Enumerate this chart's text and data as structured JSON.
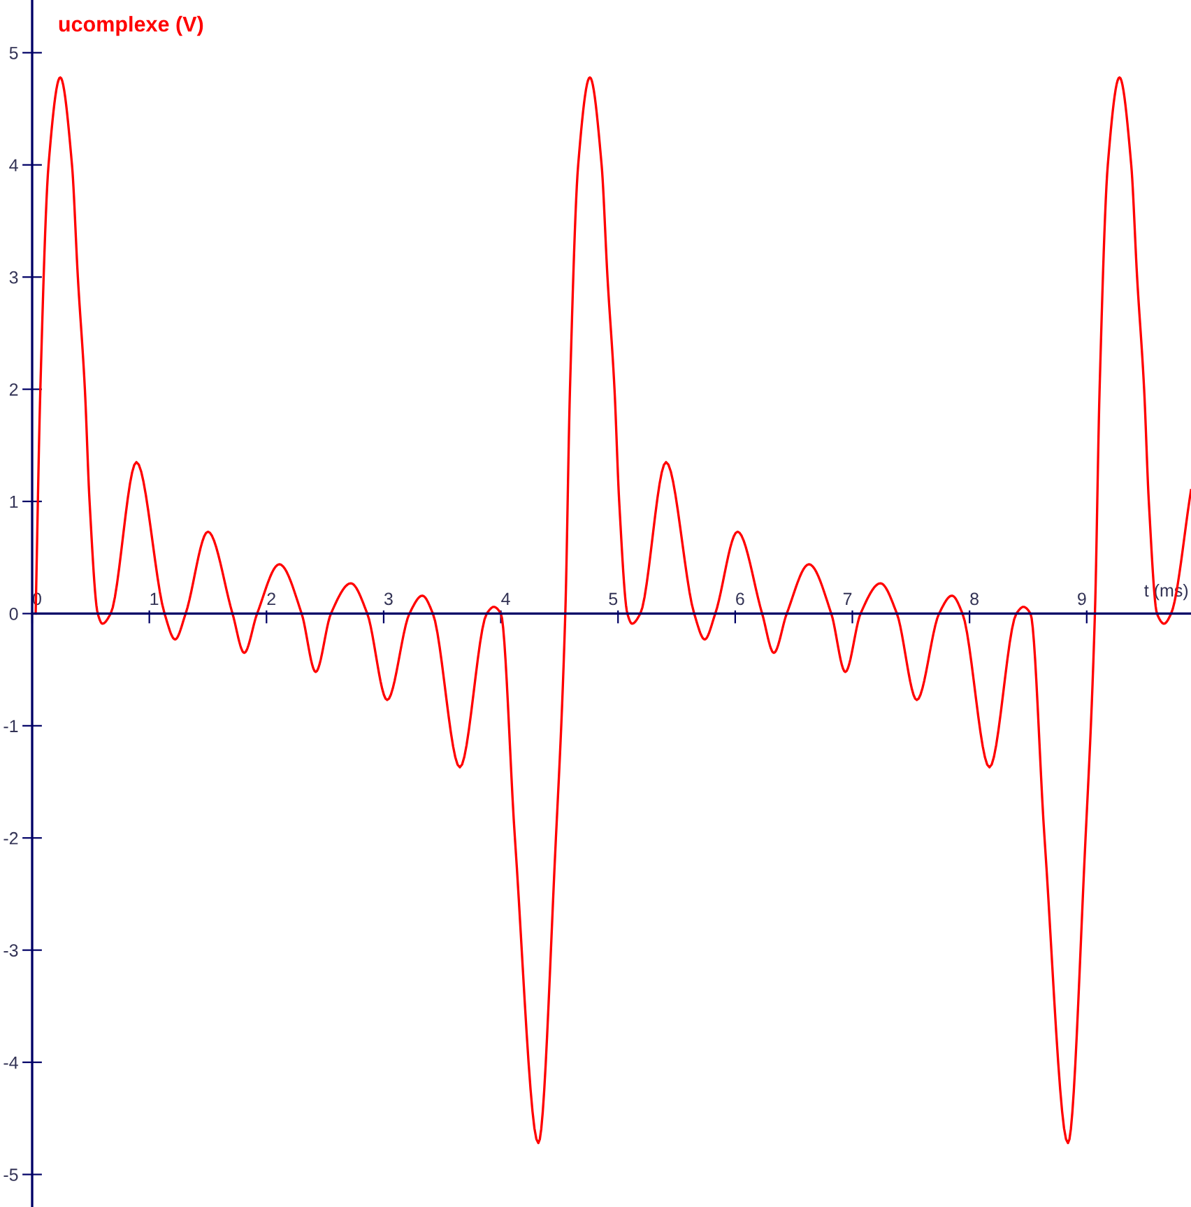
{
  "chart_data": {
    "type": "line",
    "ylabel": "ucomplexe (V)",
    "xlabel": "t (ms)",
    "xlim": [
      0,
      9.89
    ],
    "ylim": [
      -5.29,
      5.47
    ],
    "xticks": [
      0,
      1,
      2,
      3,
      4,
      5,
      6,
      7,
      8,
      9
    ],
    "yticks": [
      -5,
      -4,
      -3,
      -2,
      -1,
      0,
      1,
      2,
      3,
      4,
      5
    ],
    "grid": false,
    "series": [
      {
        "color": "#ff0000",
        "x": [
          0.03,
          0.07,
          0.14,
          0.24,
          0.34,
          0.39,
          0.45,
          0.49,
          0.56,
          0.6,
          0.67,
          0.89,
          1.13,
          1.22,
          1.31,
          1.5,
          1.71,
          1.81,
          1.92,
          2.11,
          2.3,
          2.42,
          2.55,
          2.72,
          2.86,
          3.03,
          3.22,
          3.33,
          3.42,
          3.65,
          3.88,
          3.94,
          4.0,
          4.12,
          4.32,
          4.47,
          4.55,
          4.59,
          4.66,
          4.76,
          4.86,
          4.91,
          4.97,
          5.01,
          5.08,
          5.12,
          5.19,
          5.41,
          5.65,
          5.74,
          5.83,
          6.02,
          6.23,
          6.33,
          6.44,
          6.63,
          6.82,
          6.94,
          7.07,
          7.24,
          7.38,
          7.55,
          7.74,
          7.85,
          7.94,
          8.17,
          8.4,
          8.46,
          8.52,
          8.64,
          8.84,
          8.99,
          9.07,
          9.11,
          9.18,
          9.28,
          9.38,
          9.43,
          9.49,
          9.53,
          9.6,
          9.66,
          9.72,
          9.89
        ],
        "values": [
          0,
          2,
          4,
          4.78,
          4,
          3,
          2,
          1,
          0,
          -0.09,
          0,
          1.35,
          0,
          -0.23,
          0,
          0.73,
          0,
          -0.35,
          0,
          0.44,
          0,
          -0.52,
          0,
          0.27,
          0,
          -0.77,
          0,
          0.16,
          0,
          -1.37,
          0,
          0.06,
          0,
          -2,
          -4.72,
          -2,
          0,
          2,
          4,
          4.78,
          4,
          3,
          2,
          1,
          0,
          -0.09,
          0,
          1.35,
          0,
          -0.23,
          0,
          0.73,
          0,
          -0.35,
          0,
          0.44,
          0,
          -0.52,
          0,
          0.27,
          0,
          -0.77,
          0,
          0.16,
          0,
          -1.37,
          0,
          0.06,
          0,
          -2,
          -4.72,
          -2,
          0,
          2,
          4,
          4.78,
          4,
          3,
          2,
          1,
          0,
          -0.09,
          0,
          1.1
        ]
      }
    ]
  }
}
